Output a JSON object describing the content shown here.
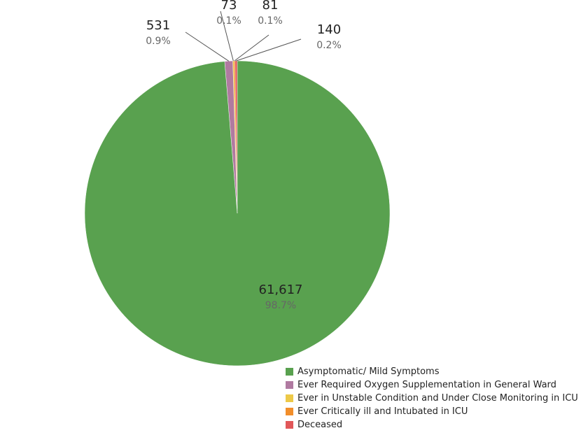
{
  "chart_data": {
    "type": "pie",
    "slices": [
      {
        "label": "Asymptomatic/ Mild Symptoms",
        "value": 61617,
        "value_text": "61,617",
        "percent_text": "98.7%",
        "color": "#59a14f"
      },
      {
        "label": "Ever Required Oxygen Supplementation in General Ward",
        "value": 531,
        "value_text": "531",
        "percent_text": "0.9%",
        "color": "#b07aa1"
      },
      {
        "label": "Ever in Unstable Condition and Under Close Monitoring in ICU",
        "value": 73,
        "value_text": "73",
        "percent_text": "0.1%",
        "color": "#edc948"
      },
      {
        "label": "Ever Critically ill and Intubated in ICU",
        "value": 81,
        "value_text": "81",
        "percent_text": "0.1%",
        "color": "#f28e2b"
      },
      {
        "label": "Deceased",
        "value": 140,
        "value_text": "140",
        "percent_text": "0.2%",
        "color": "#e15759"
      }
    ],
    "legend_position": "bottom-right"
  }
}
